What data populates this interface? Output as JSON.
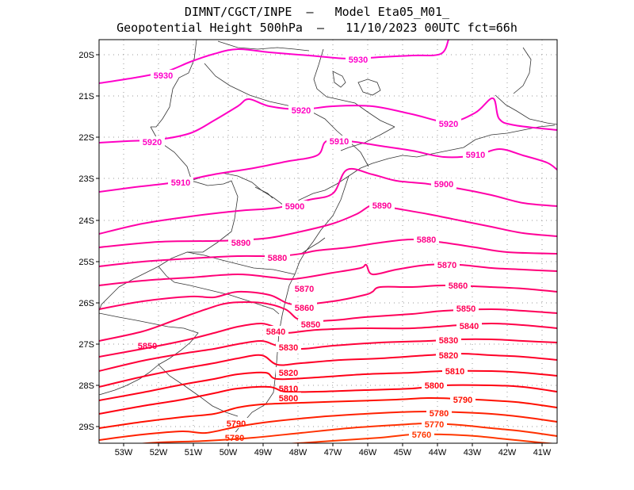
{
  "header": {
    "line1": "DIMNT/CGCT/INPE  –   Model Eta05_M01_",
    "line2": "Geopotential Height 500hPa  –   11/10/2023 00UTC fct=66h"
  },
  "axes": {
    "lon_labels": [
      "53W",
      "52W",
      "51W",
      "50W",
      "49W",
      "48W",
      "47W",
      "46W",
      "45W",
      "44W",
      "43W",
      "42W",
      "41W"
    ],
    "lat_labels": [
      "20S",
      "21S",
      "22S",
      "23S",
      "24S",
      "25S",
      "26S",
      "27S",
      "28S",
      "29S"
    ]
  },
  "contours": [
    {
      "value": 5930,
      "label": "5930",
      "color": "#ff00cc"
    },
    {
      "value": 5920,
      "label": "5920",
      "color": "#ff00c4"
    },
    {
      "value": 5910,
      "label": "5910",
      "color": "#ff00b8"
    },
    {
      "value": 5900,
      "label": "5900",
      "color": "#ff00a8"
    },
    {
      "value": 5890,
      "label": "5890",
      "color": "#ff0098"
    },
    {
      "value": 5880,
      "label": "5880",
      "color": "#ff0088"
    },
    {
      "value": 5870,
      "label": "5870",
      "color": "#ff0078"
    },
    {
      "value": 5860,
      "label": "5860",
      "color": "#ff0068"
    },
    {
      "value": 5850,
      "label": "5850",
      "color": "#ff0058"
    },
    {
      "value": 5840,
      "label": "5840",
      "color": "#ff0048"
    },
    {
      "value": 5830,
      "label": "5830",
      "color": "#ff0038"
    },
    {
      "value": 5820,
      "label": "5820",
      "color": "#ff0028"
    },
    {
      "value": 5810,
      "label": "5810",
      "color": "#ff0018"
    },
    {
      "value": 5800,
      "label": "5800",
      "color": "#ff0010"
    },
    {
      "value": 5790,
      "label": "5790",
      "color": "#ff1000"
    },
    {
      "value": 5780,
      "label": "5780",
      "color": "#ff2000"
    },
    {
      "value": 5770,
      "label": "5770",
      "color": "#ff3000"
    },
    {
      "value": 5760,
      "label": "5760",
      "color": "#ff3800"
    }
  ]
}
